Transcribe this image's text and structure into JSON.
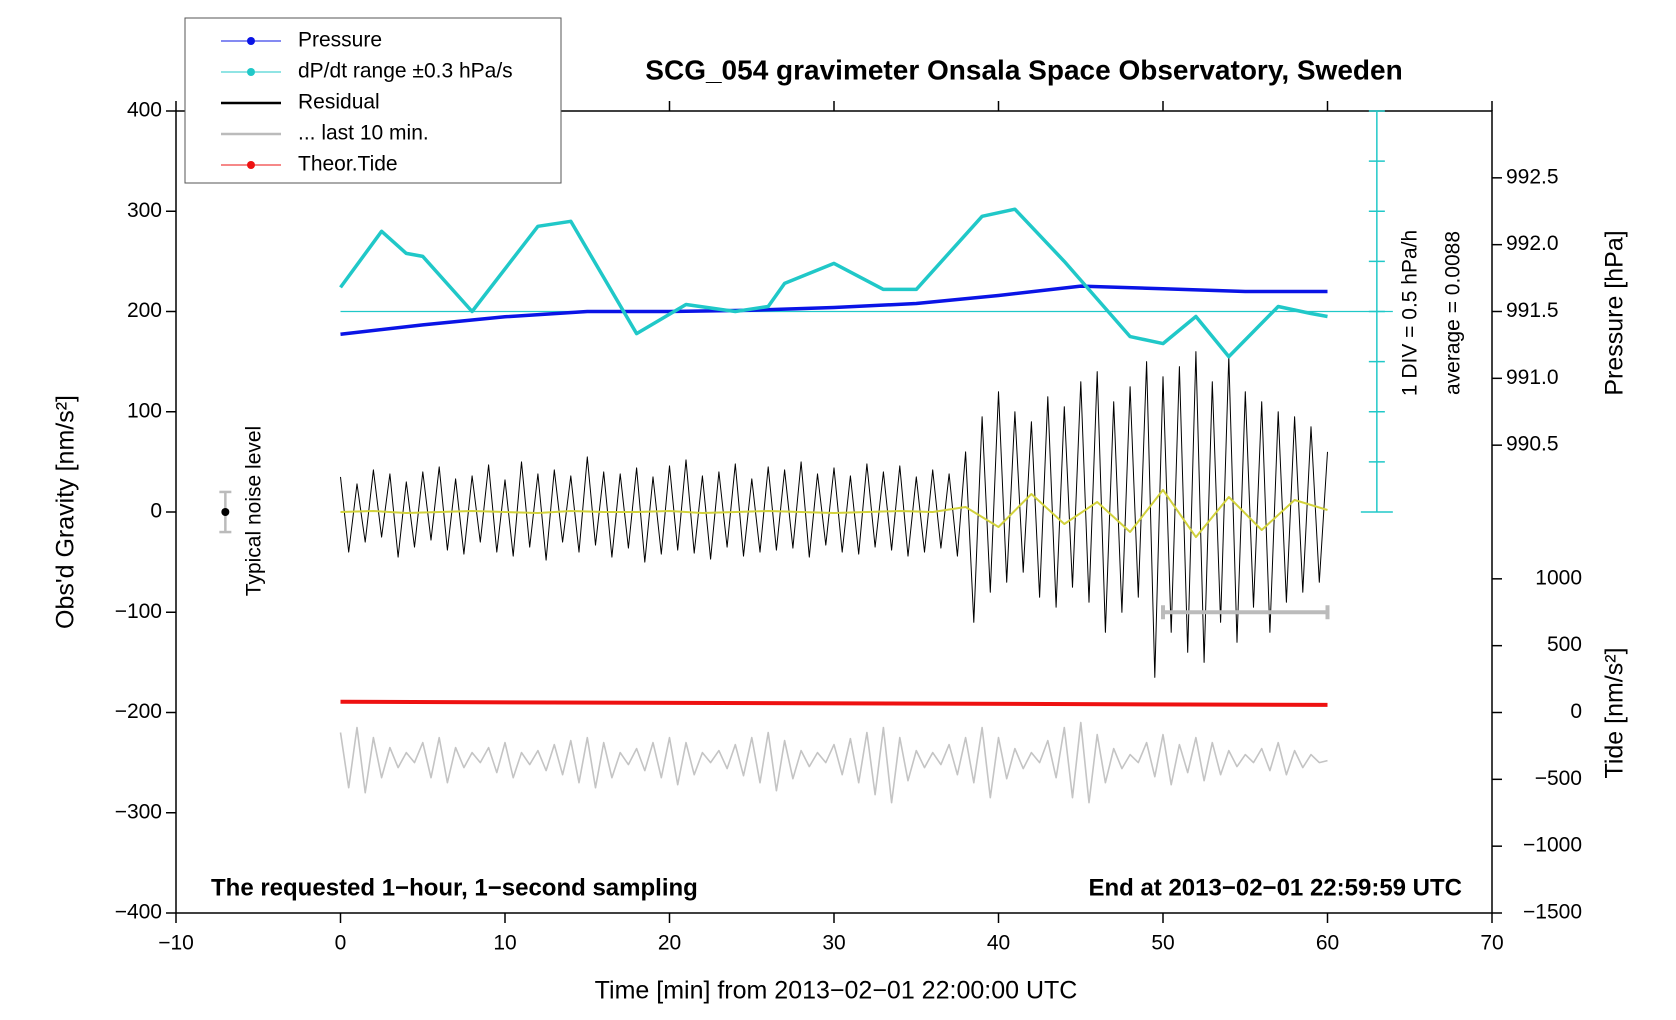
{
  "chart_data": {
    "type": "line",
    "title": "SCG_054 gravimeter Onsala Space Observatory, Sweden",
    "x_label": "Time [min] from 2013−02−01 22:00:00 UTC",
    "y_label": "Obs'd Gravity [nm/s²]",
    "y2_label": "Pressure [hPa]",
    "y3_label": "Tide [nm/s²]",
    "annotations": [
      "The requested 1−hour, 1−second sampling",
      "End at 2013−02−01 22:59:59 UTC",
      "1 DIV = 0.5 hPa/h",
      "average = 0.0088"
    ],
    "legend": "upper left",
    "xlim": [
      -10,
      70
    ],
    "xticks": [
      {
        "value": -10,
        "label": "−10"
      },
      0,
      10,
      20,
      30,
      40,
      50,
      60,
      70
    ],
    "ylim": [
      -400,
      400
    ],
    "yticks": [
      {
        "value": -400,
        "label": "−400"
      },
      {
        "value": -300,
        "label": "−300"
      },
      {
        "value": -200,
        "label": "−200"
      },
      {
        "value": -100,
        "label": "−100"
      },
      0,
      100,
      200,
      300,
      400
    ],
    "y2lim": [
      987,
      993
    ],
    "y2ticks": [
      990.5,
      {
        "value": 991,
        "label": "991.0"
      },
      991.5,
      {
        "value": 992,
        "label": "992.0"
      },
      992.5
    ],
    "y3lim": [
      -1500,
      4500
    ],
    "y3ticks": [
      {
        "value": -1500,
        "label": "−1500"
      },
      {
        "value": -1000,
        "label": "−1000"
      },
      {
        "value": -500,
        "label": "−500"
      },
      0,
      500,
      1000
    ],
    "dpdt_axis": {
      "x": 63,
      "ylim": [
        0,
        400
      ],
      "ticks": [
        0,
        50,
        100,
        150,
        200,
        250,
        300,
        350,
        400
      ],
      "reference": 200
    },
    "noise_level": {
      "label": "Typical noise level",
      "x": -7,
      "value": 0,
      "error": 20
    },
    "x": [
      0,
      0.5,
      1,
      1.5,
      2,
      2.5,
      3,
      3.5,
      4,
      4.5,
      5,
      5.5,
      6,
      6.5,
      7,
      7.5,
      8,
      8.5,
      9,
      9.5,
      10,
      10.5,
      11,
      11.5,
      12,
      12.5,
      13,
      13.5,
      14,
      14.5,
      15,
      15.5,
      16,
      16.5,
      17,
      17.5,
      18,
      18.5,
      19,
      19.5,
      20,
      20.5,
      21,
      21.5,
      22,
      22.5,
      23,
      23.5,
      24,
      24.5,
      25,
      25.5,
      26,
      26.5,
      27,
      27.5,
      28,
      28.5,
      29,
      29.5,
      30,
      30.5,
      31,
      31.5,
      32,
      32.5,
      33,
      33.5,
      34,
      34.5,
      35,
      35.5,
      36,
      36.5,
      37,
      37.5,
      38,
      38.5,
      39,
      39.5,
      40,
      40.5,
      41,
      41.5,
      42,
      42.5,
      43,
      43.5,
      44,
      44.5,
      45,
      45.5,
      46,
      46.5,
      47,
      47.5,
      48,
      48.5,
      49,
      49.5,
      50,
      50.5,
      51,
      51.5,
      52,
      52.5,
      53,
      53.5,
      54,
      54.5,
      55,
      55.5,
      56,
      56.5,
      57,
      57.5,
      58,
      58.5,
      59,
      59.5,
      60
    ],
    "series": [
      {
        "name": "Pressure",
        "color": "#0a14e6",
        "axis": "y2",
        "marker": true,
        "x": [
          0,
          5,
          10,
          15,
          20,
          25,
          30,
          35,
          40,
          45,
          50,
          55,
          60
        ],
        "values": [
          991.33,
          991.4,
          991.46,
          991.5,
          991.5,
          991.51,
          991.53,
          991.56,
          991.62,
          991.69,
          991.67,
          991.65,
          991.65
        ]
      },
      {
        "name": "dP/dt range ±0.3 hPa/s",
        "color": "#20c8c8",
        "axis": "y",
        "marker": true,
        "x": [
          0,
          2.5,
          4,
          5,
          8,
          12,
          14,
          18,
          21,
          24,
          26,
          27,
          30,
          33,
          35,
          39,
          41,
          44,
          48,
          50,
          52,
          54,
          57,
          59,
          60
        ],
        "values": [
          224,
          280,
          258,
          255,
          200,
          285,
          290,
          178,
          207,
          200,
          205,
          228,
          248,
          222,
          222,
          295,
          302,
          250,
          175,
          168,
          195,
          155,
          205,
          198,
          195
        ]
      },
      {
        "name": "Residual",
        "color": "#000000",
        "axis": "y",
        "marker": false,
        "values": [
          35,
          -40,
          28,
          -30,
          42,
          -25,
          38,
          -45,
          30,
          -35,
          40,
          -28,
          45,
          -38,
          33,
          -42,
          36,
          -30,
          47,
          -40,
          32,
          -44,
          50,
          -35,
          38,
          -48,
          42,
          -30,
          36,
          -40,
          55,
          -33,
          40,
          -45,
          38,
          -36,
          44,
          -50,
          35,
          -42,
          46,
          -38,
          52,
          -41,
          36,
          -47,
          40,
          -35,
          48,
          -44,
          33,
          -40,
          45,
          -38,
          42,
          -36,
          50,
          -45,
          38,
          -33,
          44,
          -40,
          36,
          -42,
          48,
          -35,
          40,
          -38,
          46,
          -44,
          35,
          -40,
          42,
          -36,
          38,
          -44,
          60,
          -110,
          95,
          -80,
          120,
          -70,
          100,
          -60,
          90,
          -85,
          115,
          -95,
          105,
          -75,
          130,
          -90,
          140,
          -120,
          110,
          -100,
          125,
          -85,
          150,
          -165,
          135,
          -120,
          145,
          -140,
          160,
          -150,
          130,
          -110,
          155,
          -130,
          120,
          -95,
          110,
          -120,
          100,
          -90,
          95,
          -80,
          85,
          -70,
          60
        ]
      },
      {
        "name": "... last 10 min.",
        "color": "#bbbbbb",
        "axis": "y",
        "marker": false,
        "bar": true,
        "x": [
          50,
          60
        ],
        "values": [
          -100,
          -100
        ]
      },
      {
        "name": "Theor.Tide",
        "color": "#ee1111",
        "axis": "y3",
        "marker": true,
        "x": [
          0,
          60
        ],
        "values": [
          80,
          57
        ]
      },
      {
        "color": "#d2d23c",
        "axis": "y",
        "marker": false,
        "x": [
          0,
          2,
          4,
          6,
          8,
          10,
          12,
          14,
          16,
          18,
          20,
          22,
          24,
          26,
          28,
          30,
          32,
          34,
          36,
          38,
          40,
          42,
          44,
          46,
          48,
          50,
          52,
          54,
          56,
          58,
          60
        ],
        "values": [
          0,
          1,
          -1,
          0,
          1,
          0,
          -1,
          1,
          0,
          0,
          1,
          -1,
          0,
          1,
          0,
          -1,
          0,
          1,
          0,
          5,
          -15,
          18,
          -12,
          10,
          -20,
          22,
          -25,
          15,
          -18,
          12,
          2
        ]
      },
      {
        "color": "#c4c4c4",
        "axis": "y",
        "marker": false,
        "values": [
          -220,
          -275,
          -215,
          -280,
          -225,
          -265,
          -235,
          -255,
          -240,
          -250,
          -230,
          -265,
          -225,
          -270,
          -235,
          -255,
          -240,
          -250,
          -235,
          -260,
          -230,
          -265,
          -240,
          -252,
          -238,
          -258,
          -232,
          -262,
          -228,
          -270,
          -225,
          -275,
          -230,
          -265,
          -240,
          -252,
          -236,
          -258,
          -230,
          -265,
          -225,
          -272,
          -230,
          -262,
          -240,
          -250,
          -238,
          -256,
          -232,
          -263,
          -225,
          -270,
          -220,
          -278,
          -228,
          -266,
          -238,
          -254,
          -240,
          -250,
          -232,
          -262,
          -226,
          -270,
          -220,
          -282,
          -215,
          -290,
          -225,
          -268,
          -238,
          -255,
          -240,
          -252,
          -232,
          -262,
          -225,
          -270,
          -215,
          -285,
          -225,
          -266,
          -236,
          -256,
          -240,
          -250,
          -228,
          -265,
          -215,
          -285,
          -210,
          -290,
          -222,
          -270,
          -236,
          -256,
          -242,
          -250,
          -230,
          -264,
          -222,
          -272,
          -232,
          -260,
          -225,
          -268,
          -230,
          -262,
          -238,
          -254,
          -242,
          -250,
          -236,
          -258,
          -230,
          -262,
          -238,
          -255,
          -242,
          -250,
          -248
        ]
      }
    ]
  }
}
